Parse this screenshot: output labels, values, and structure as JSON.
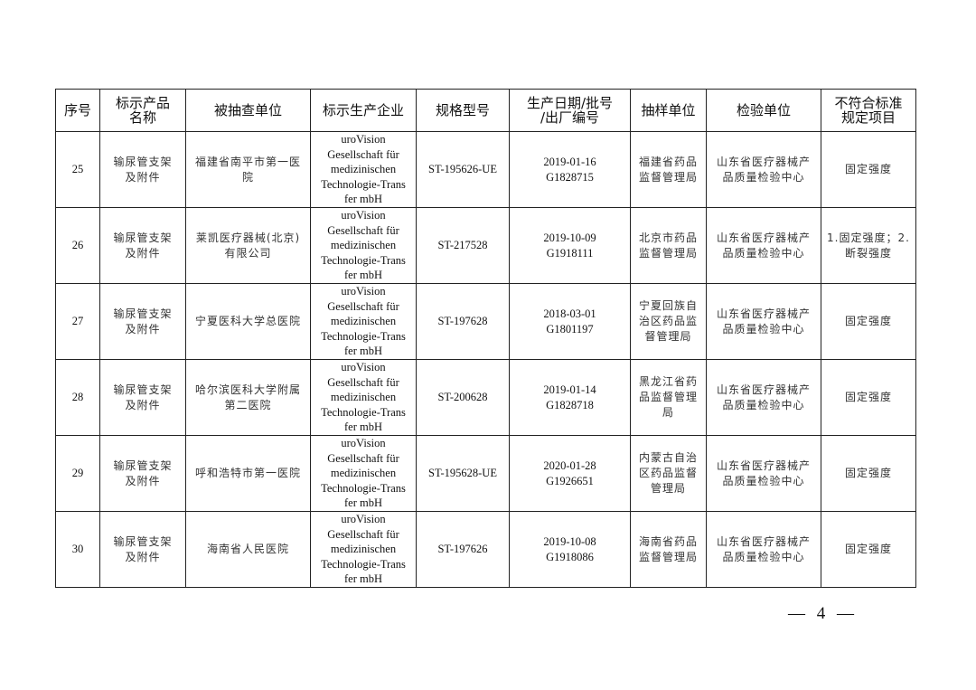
{
  "table": {
    "headers": [
      "序号",
      "标示产品\n名称",
      "被抽查单位",
      "标示生产企业",
      "规格型号",
      "生产日期/批号\n/出厂编号",
      "抽样单位",
      "检验单位",
      "不符合标准\n规定项目"
    ],
    "rows": [
      {
        "no": "25",
        "product": "输尿管支架\n及附件",
        "unit": "福建省南平市第一医\n院",
        "maker": "uroVision\nGesellschaft für\nmedizinischen\nTechnologie-Trans\nfer mbH",
        "model": "ST-195626-UE",
        "batch": "2019-01-16\nG1828715",
        "sampler": "福建省药品\n监督管理局",
        "tester": "山东省医疗器械产\n品质量检验中心",
        "items": "固定强度"
      },
      {
        "no": "26",
        "product": "输尿管支架\n及附件",
        "unit": "莱凯医疗器械(北京)\n有限公司",
        "maker": "uroVision\nGesellschaft für\nmedizinischen\nTechnologie-Trans\nfer mbH",
        "model": "ST-217528",
        "batch": "2019-10-09\nG1918111",
        "sampler": "北京市药品\n监督管理局",
        "tester": "山东省医疗器械产\n品质量检验中心",
        "items": "1.固定强度；2.\n断裂强度"
      },
      {
        "no": "27",
        "product": "输尿管支架\n及附件",
        "unit": "宁夏医科大学总医院",
        "maker": "uroVision\nGesellschaft für\nmedizinischen\nTechnologie-Trans\nfer mbH",
        "model": "ST-197628",
        "batch": "2018-03-01\nG1801197",
        "sampler": "宁夏回族自\n治区药品监\n督管理局",
        "tester": "山东省医疗器械产\n品质量检验中心",
        "items": "固定强度"
      },
      {
        "no": "28",
        "product": "输尿管支架\n及附件",
        "unit": "哈尔滨医科大学附属\n第二医院",
        "maker": "uroVision\nGesellschaft für\nmedizinischen\nTechnologie-Trans\nfer mbH",
        "model": "ST-200628",
        "batch": "2019-01-14\nG1828718",
        "sampler": "黑龙江省药\n品监督管理\n局",
        "tester": "山东省医疗器械产\n品质量检验中心",
        "items": "固定强度"
      },
      {
        "no": "29",
        "product": "输尿管支架\n及附件",
        "unit": "呼和浩特市第一医院",
        "maker": "uroVision\nGesellschaft für\nmedizinischen\nTechnologie-Trans\nfer mbH",
        "model": "ST-195628-UE",
        "batch": "2020-01-28\nG1926651",
        "sampler": "内蒙古自治\n区药品监督\n管理局",
        "tester": "山东省医疗器械产\n品质量检验中心",
        "items": "固定强度"
      },
      {
        "no": "30",
        "product": "输尿管支架\n及附件",
        "unit": "海南省人民医院",
        "maker": "uroVision\nGesellschaft für\nmedizinischen\nTechnologie-Trans\nfer mbH",
        "model": "ST-197626",
        "batch": "2019-10-08\nG1918086",
        "sampler": "海南省药品\n监督管理局",
        "tester": "山东省医疗器械产\n品质量检验中心",
        "items": "固定强度"
      }
    ]
  },
  "page_number": "— 4 —"
}
